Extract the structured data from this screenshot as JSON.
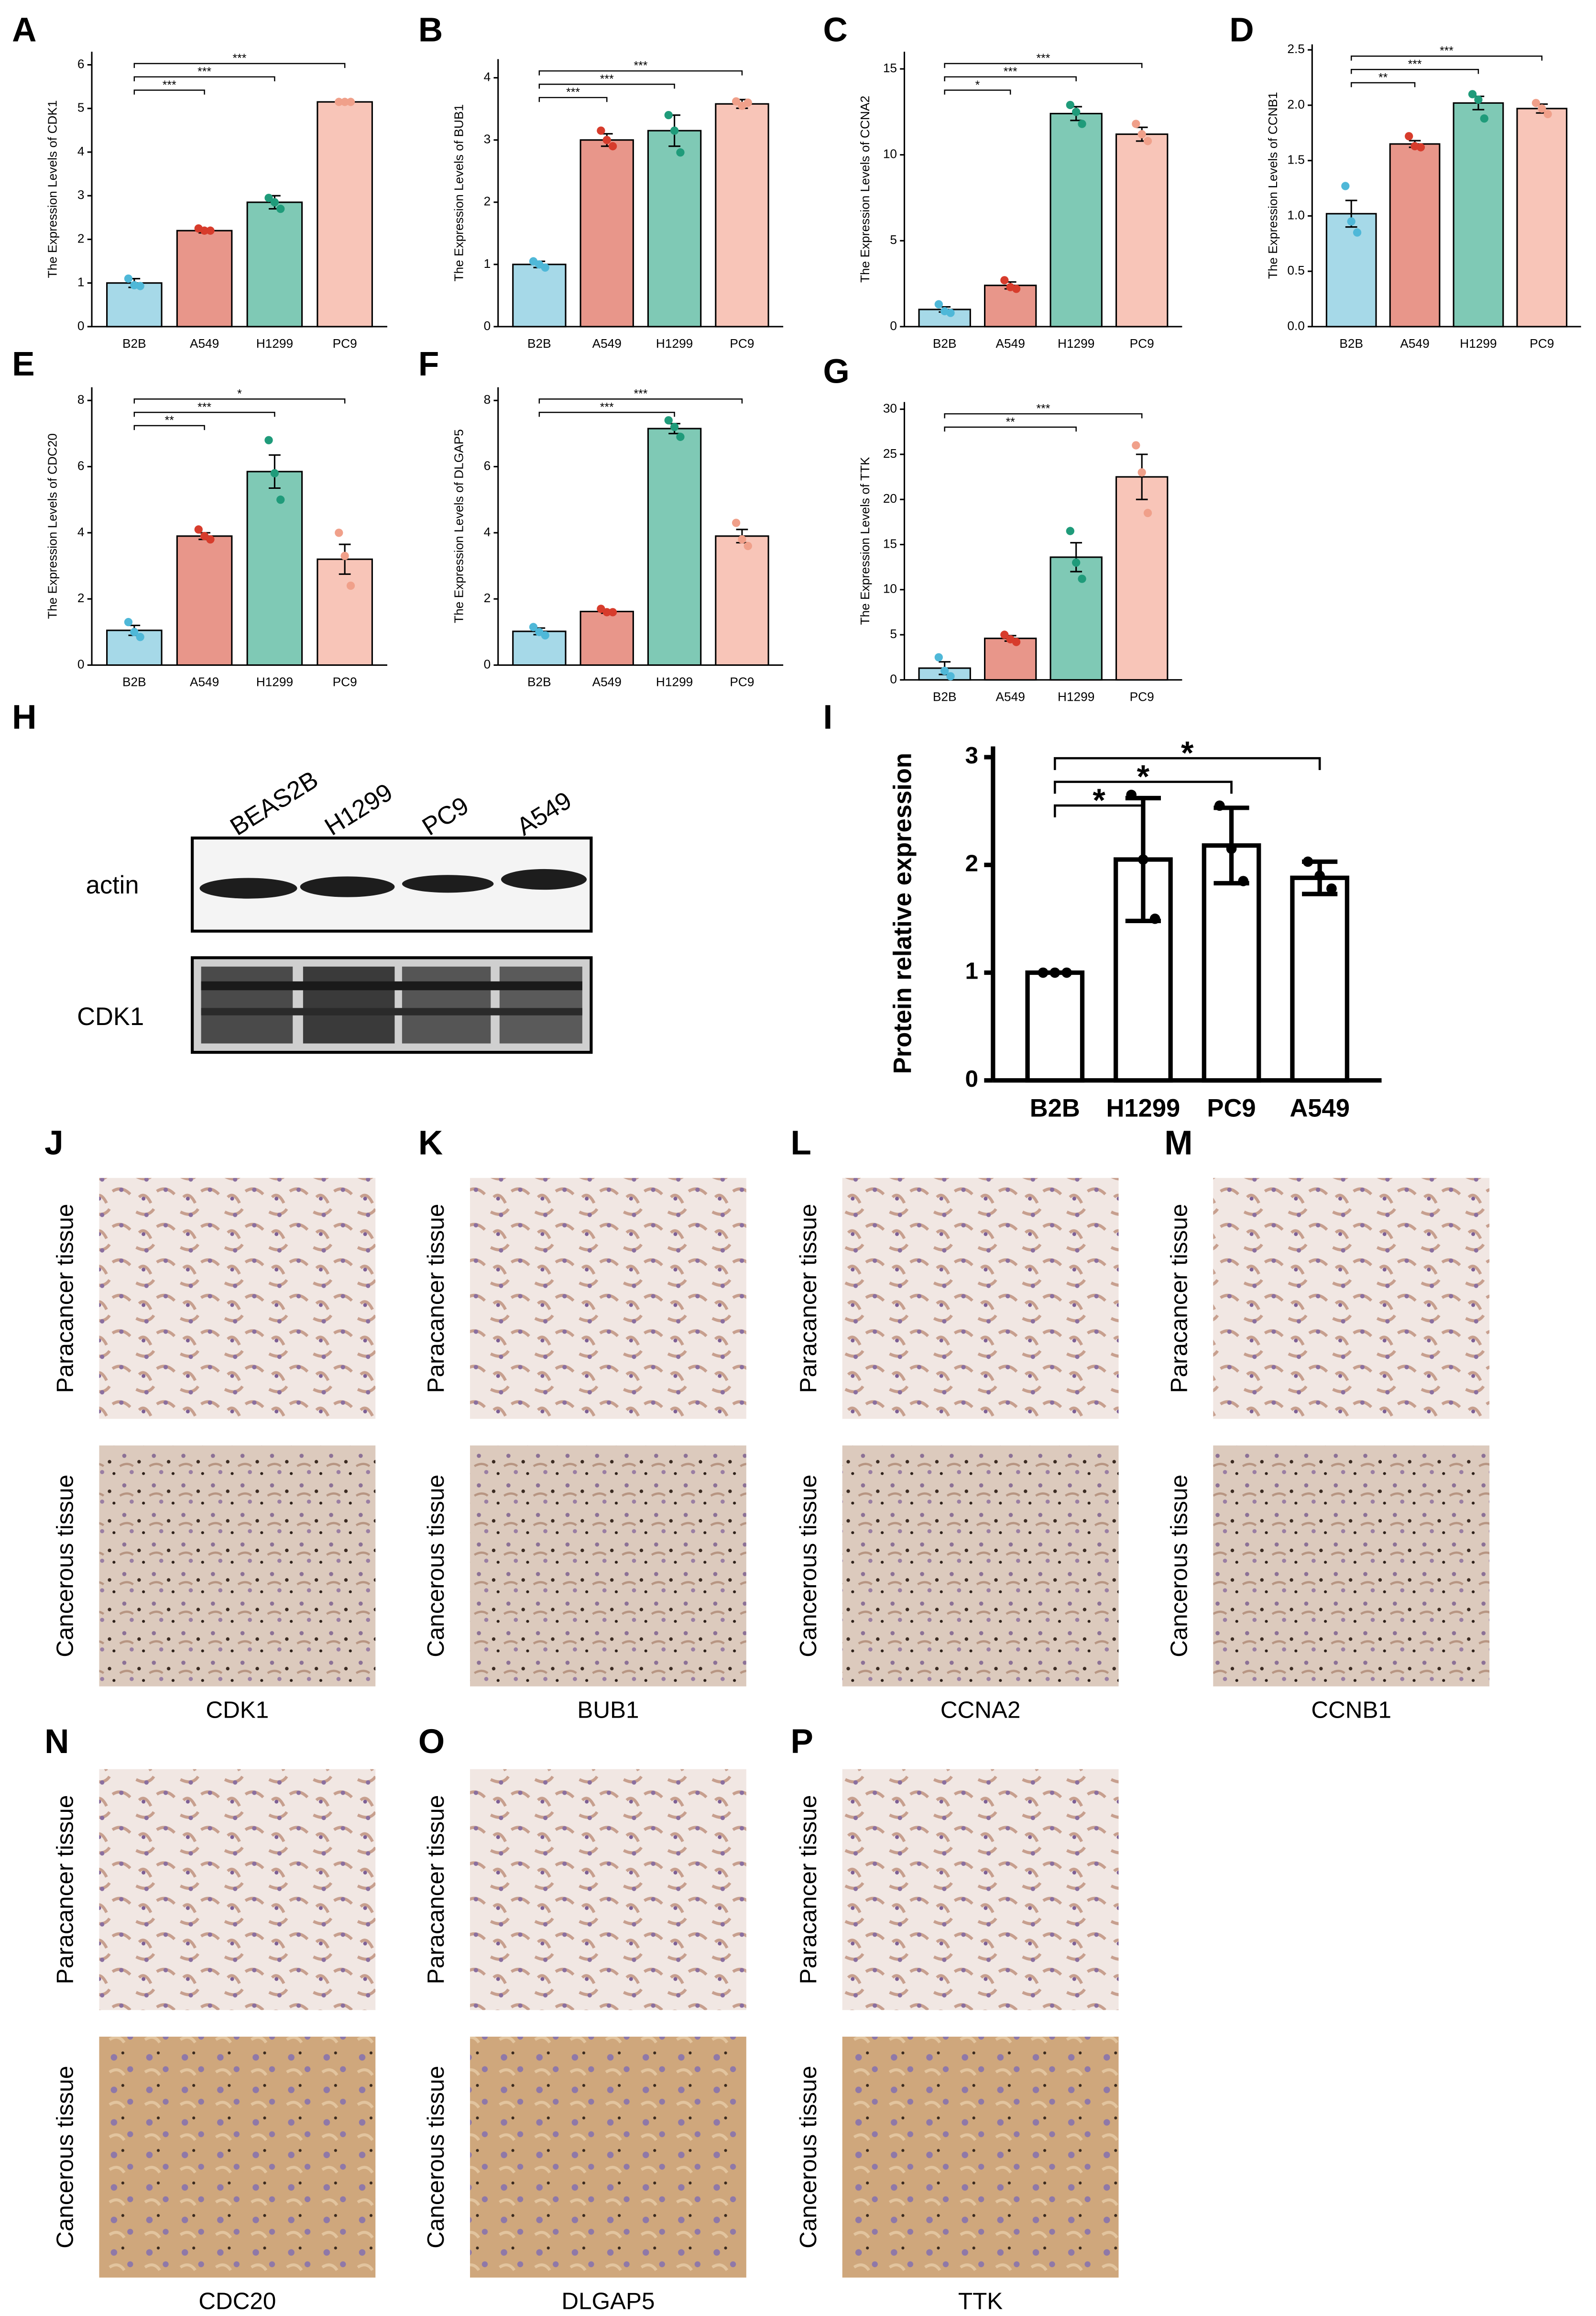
{
  "chart_data": [
    {
      "type": "bar",
      "y_label": "The Expression Levels of CDK1",
      "categories": [
        "B2B",
        "A549",
        "H1299",
        "PC9"
      ],
      "values": [
        1.0,
        2.2,
        2.85,
        5.15
      ],
      "errors": [
        0.1,
        0.05,
        0.15,
        0.03
      ],
      "points": [
        [
          1.1,
          0.95,
          0.93
        ],
        [
          2.25,
          2.2,
          2.2
        ],
        [
          2.95,
          2.85,
          2.7
        ],
        [
          5.15,
          5.15,
          5.15
        ]
      ],
      "colors": [
        "#a6d9e8",
        "#e8968a",
        "#7fc9b5",
        "#f8c5b8"
      ],
      "point_colors": [
        "#4fb8d8",
        "#d73c2c",
        "#1f9b7a",
        "#f0a08a"
      ],
      "edge_color": "#000000",
      "ylim": [
        0,
        6.3
      ],
      "yticks": [
        0,
        1,
        2,
        3,
        4,
        5,
        6
      ],
      "significance": [
        {
          "from": 0,
          "to": 1,
          "label": "***"
        },
        {
          "from": 0,
          "to": 2,
          "label": "***"
        },
        {
          "from": 0,
          "to": 3,
          "label": "***"
        }
      ]
    },
    {
      "type": "bar",
      "y_label": "The Expression Levels of BUB1",
      "categories": [
        "B2B",
        "A549",
        "H1299",
        "PC9"
      ],
      "values": [
        1.0,
        3.0,
        3.15,
        3.58
      ],
      "errors": [
        0.05,
        0.1,
        0.25,
        0.07
      ],
      "points": [
        [
          1.05,
          1.0,
          0.95
        ],
        [
          3.15,
          3.0,
          2.9
        ],
        [
          3.4,
          3.15,
          2.8
        ],
        [
          3.62,
          3.55,
          3.6
        ]
      ],
      "colors": [
        "#a6d9e8",
        "#e8968a",
        "#7fc9b5",
        "#f8c5b8"
      ],
      "point_colors": [
        "#4fb8d8",
        "#d73c2c",
        "#1f9b7a",
        "#f0a08a"
      ],
      "edge_color": "#000000",
      "ylim": [
        0,
        4.3
      ],
      "yticks": [
        0,
        1,
        2,
        3,
        4
      ],
      "significance": [
        {
          "from": 0,
          "to": 1,
          "label": "***"
        },
        {
          "from": 0,
          "to": 2,
          "label": "***"
        },
        {
          "from": 0,
          "to": 3,
          "label": "***"
        }
      ]
    },
    {
      "type": "bar",
      "y_label": "The Expression Levels of CCNA2",
      "categories": [
        "B2B",
        "A549",
        "H1299",
        "PC9"
      ],
      "values": [
        1.0,
        2.4,
        12.4,
        11.2
      ],
      "errors": [
        0.15,
        0.2,
        0.4,
        0.4
      ],
      "points": [
        [
          1.3,
          0.9,
          0.8
        ],
        [
          2.7,
          2.3,
          2.2
        ],
        [
          12.9,
          12.5,
          11.8
        ],
        [
          11.8,
          11.2,
          10.8
        ]
      ],
      "colors": [
        "#a6d9e8",
        "#e8968a",
        "#7fc9b5",
        "#f8c5b8"
      ],
      "point_colors": [
        "#4fb8d8",
        "#d73c2c",
        "#1f9b7a",
        "#f0a08a"
      ],
      "edge_color": "#000000",
      "ylim": [
        0,
        16
      ],
      "yticks": [
        0,
        5,
        10,
        15
      ],
      "significance": [
        {
          "from": 0,
          "to": 1,
          "label": "*"
        },
        {
          "from": 0,
          "to": 2,
          "label": "***"
        },
        {
          "from": 0,
          "to": 3,
          "label": "***"
        }
      ]
    },
    {
      "type": "bar",
      "y_label": "The Expression Levels of CCNB1",
      "categories": [
        "B2B",
        "A549",
        "H1299",
        "PC9"
      ],
      "values": [
        1.02,
        1.65,
        2.02,
        1.97
      ],
      "errors": [
        0.12,
        0.03,
        0.06,
        0.04
      ],
      "points": [
        [
          1.27,
          0.95,
          0.85
        ],
        [
          1.72,
          1.63,
          1.62
        ],
        [
          2.1,
          2.05,
          1.88
        ],
        [
          2.02,
          1.97,
          1.92
        ]
      ],
      "colors": [
        "#a6d9e8",
        "#e8968a",
        "#7fc9b5",
        "#f8c5b8"
      ],
      "point_colors": [
        "#4fb8d8",
        "#d73c2c",
        "#1f9b7a",
        "#f0a08a"
      ],
      "edge_color": "#000000",
      "ylim": [
        0,
        2.55
      ],
      "yticks": [
        {
          "value": 0,
          "label": "0.0"
        },
        0.5,
        {
          "value": 1,
          "label": "1.0"
        },
        1.5,
        {
          "value": 2,
          "label": "2.0"
        },
        2.5
      ],
      "significance": [
        {
          "from": 0,
          "to": 1,
          "label": "**"
        },
        {
          "from": 0,
          "to": 2,
          "label": "***"
        },
        {
          "from": 0,
          "to": 3,
          "label": "***"
        }
      ]
    },
    {
      "type": "bar",
      "y_label": "The Expression Levels of CDC20",
      "categories": [
        "B2B",
        "A549",
        "H1299",
        "PC9"
      ],
      "values": [
        1.05,
        3.9,
        5.85,
        3.2
      ],
      "errors": [
        0.15,
        0.1,
        0.5,
        0.45
      ],
      "points": [
        [
          1.3,
          1.0,
          0.85
        ],
        [
          4.1,
          3.9,
          3.8
        ],
        [
          6.8,
          5.8,
          5.0
        ],
        [
          4.0,
          3.3,
          2.4
        ]
      ],
      "colors": [
        "#a6d9e8",
        "#e8968a",
        "#7fc9b5",
        "#f8c5b8"
      ],
      "point_colors": [
        "#4fb8d8",
        "#d73c2c",
        "#1f9b7a",
        "#f0a08a"
      ],
      "edge_color": "#000000",
      "ylim": [
        0,
        8.4
      ],
      "yticks": [
        0,
        2,
        4,
        6,
        8
      ],
      "significance": [
        {
          "from": 0,
          "to": 1,
          "label": "**"
        },
        {
          "from": 0,
          "to": 2,
          "label": "***"
        },
        {
          "from": 0,
          "to": 3,
          "label": "*"
        }
      ]
    },
    {
      "type": "bar",
      "y_label": "The Expression Levels of DLGAP5",
      "categories": [
        "B2B",
        "A549",
        "H1299",
        "PC9"
      ],
      "values": [
        1.02,
        1.62,
        7.15,
        3.9
      ],
      "errors": [
        0.1,
        0.05,
        0.15,
        0.2
      ],
      "points": [
        [
          1.15,
          1.0,
          0.9
        ],
        [
          1.7,
          1.6,
          1.6
        ],
        [
          7.4,
          7.2,
          6.9
        ],
        [
          4.3,
          3.8,
          3.6
        ]
      ],
      "colors": [
        "#a6d9e8",
        "#e8968a",
        "#7fc9b5",
        "#f8c5b8"
      ],
      "point_colors": [
        "#4fb8d8",
        "#d73c2c",
        "#1f9b7a",
        "#f0a08a"
      ],
      "edge_color": "#000000",
      "ylim": [
        0,
        8.4
      ],
      "yticks": [
        0,
        2,
        4,
        6,
        8
      ],
      "significance": [
        {
          "from": 0,
          "to": 2,
          "label": "***"
        },
        {
          "from": 0,
          "to": 3,
          "label": "***"
        }
      ]
    },
    {
      "type": "bar",
      "y_label": "The Expression Levels of TTK",
      "categories": [
        "B2B",
        "A549",
        "H1299",
        "PC9"
      ],
      "values": [
        1.3,
        4.6,
        13.6,
        22.5
      ],
      "errors": [
        0.7,
        0.3,
        1.6,
        2.5
      ],
      "points": [
        [
          2.5,
          1.0,
          0.4
        ],
        [
          5.0,
          4.5,
          4.2
        ],
        [
          16.5,
          13.0,
          11.2
        ],
        [
          26.0,
          23.0,
          18.5
        ]
      ],
      "colors": [
        "#a6d9e8",
        "#e8968a",
        "#7fc9b5",
        "#f8c5b8"
      ],
      "point_colors": [
        "#4fb8d8",
        "#d73c2c",
        "#1f9b7a",
        "#f0a08a"
      ],
      "edge_color": "#000000",
      "ylim": [
        0,
        30.8
      ],
      "yticks": [
        0,
        5,
        10,
        15,
        20,
        25,
        30
      ],
      "significance": [
        {
          "from": 0,
          "to": 2,
          "label": "**"
        },
        {
          "from": 0,
          "to": 3,
          "label": "***"
        }
      ]
    },
    {
      "type": "bar",
      "y_label": "Protein relative expression",
      "categories": [
        "B2B",
        "H1299",
        "PC9",
        "A549"
      ],
      "values": [
        1.0,
        2.05,
        2.18,
        1.88
      ],
      "errors": [
        0.0,
        0.57,
        0.35,
        0.15
      ],
      "points": [
        [
          1,
          1,
          1
        ],
        [
          2.65,
          2.05,
          1.5
        ],
        [
          2.55,
          2.15,
          1.85
        ],
        [
          2.03,
          1.9,
          1.78
        ]
      ],
      "colors": [
        "#ffffff",
        "#ffffff",
        "#ffffff",
        "#ffffff"
      ],
      "point_colors": [
        "#000000",
        "#000000",
        "#000000",
        "#000000"
      ],
      "edge_color": "#000000",
      "ylim": [
        0,
        3.1
      ],
      "yticks": [
        0,
        1,
        2,
        3
      ],
      "significance": [
        {
          "from": 0,
          "to": 1,
          "label": "*"
        },
        {
          "from": 0,
          "to": 2,
          "label": "*"
        },
        {
          "from": 0,
          "to": 3,
          "label": "*"
        }
      ]
    }
  ],
  "panel_labels": [
    "A",
    "B",
    "C",
    "D",
    "E",
    "F",
    "G",
    "H",
    "I",
    "J",
    "K",
    "L",
    "M",
    "N",
    "O",
    "P"
  ],
  "western_blot": {
    "lanes": [
      "BEAS2B",
      "H1299",
      "PC9",
      "A549"
    ],
    "rows": [
      "actin",
      "CDK1"
    ]
  },
  "ihc": {
    "rows": [
      "Paracancer tissue",
      "Cancerous tissue"
    ],
    "genes": [
      "CDK1",
      "BUB1",
      "CCNA2",
      "CCNB1",
      "CDC20",
      "DLGAP5",
      "TTK"
    ]
  }
}
